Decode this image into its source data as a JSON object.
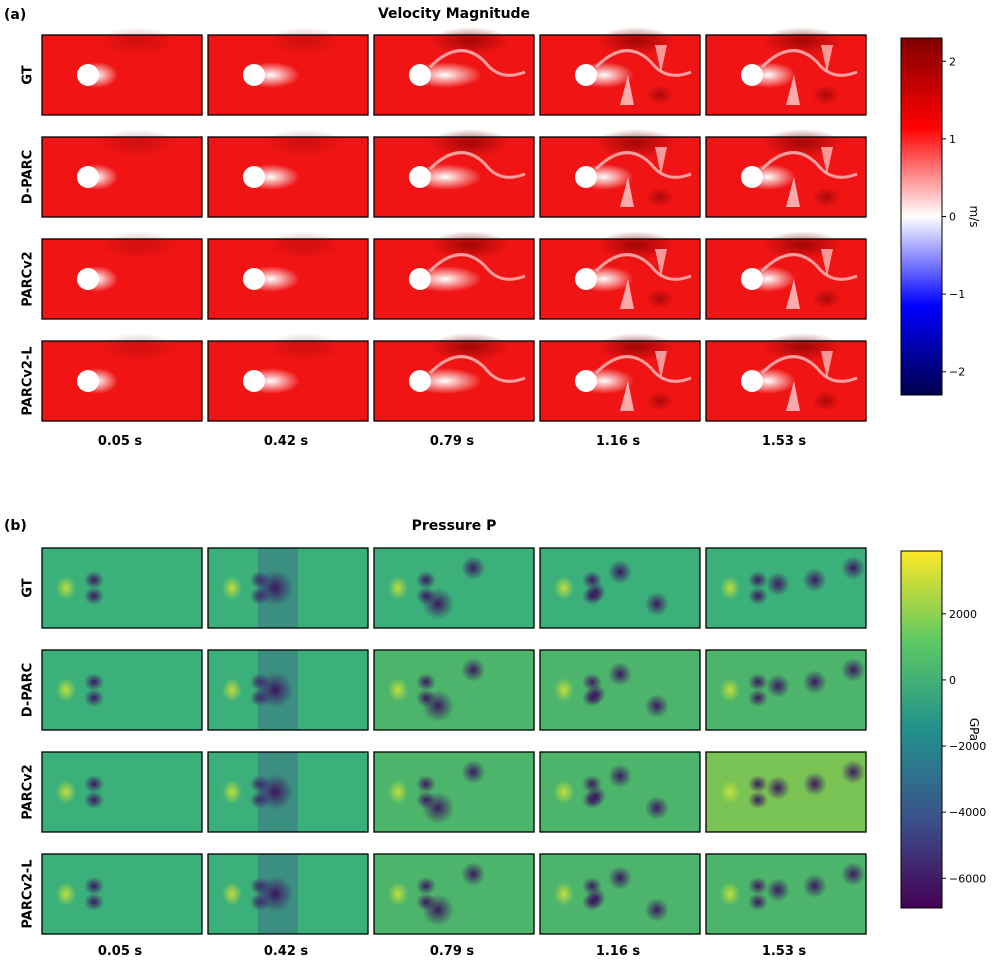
{
  "figure": {
    "time_labels": [
      "0.05 s",
      "0.42 s",
      "0.79 s",
      "1.16 s",
      "1.53 s"
    ],
    "row_labels": [
      "GT",
      "D-PARC",
      "PARCv2",
      "PARCv2-L"
    ]
  },
  "chart_data": [
    {
      "type": "heatmap",
      "panel_tag": "(a)",
      "title": "Velocity Magnitude",
      "rows": [
        "GT",
        "D-PARC",
        "PARCv2",
        "PARCv2-L"
      ],
      "columns": [
        "0.05 s",
        "0.42 s",
        "0.79 s",
        "1.16 s",
        "1.53 s"
      ],
      "colorbar": {
        "label": "m/s",
        "colormap": "seismic",
        "range": [
          -2.3,
          2.3
        ],
        "ticks": [
          -2,
          -1,
          0,
          1,
          2
        ],
        "tick_labels": [
          "−2",
          "−1",
          "0",
          "1",
          "2"
        ],
        "colors": [
          "#00004c",
          "#0000ff",
          "#ffffff",
          "#ff0000",
          "#800000"
        ]
      },
      "field": {
        "background_value": 1.1,
        "obstacle_value": 0.0,
        "notes": "flow past a circular obstacle; wake streaks and vortex shedding downstream"
      }
    },
    {
      "type": "heatmap",
      "panel_tag": "(b)",
      "title": "Pressure P",
      "rows": [
        "GT",
        "D-PARC",
        "PARCv2",
        "PARCv2-L"
      ],
      "columns": [
        "0.05 s",
        "0.42 s",
        "0.79 s",
        "1.16 s",
        "1.53 s"
      ],
      "colorbar": {
        "label": "GPa",
        "colormap": "viridis",
        "range": [
          -6900,
          3900
        ],
        "ticks": [
          -6000,
          -4000,
          -2000,
          0,
          2000
        ],
        "tick_labels": [
          "−6000",
          "−4000",
          "−2000",
          "0",
          "2000"
        ],
        "colors": [
          "#440154",
          "#3b528b",
          "#21918c",
          "#5ec962",
          "#fde725"
        ]
      },
      "field": {
        "background_value": 0,
        "notes": "low-pressure vortex cores shed behind the obstacle"
      }
    }
  ]
}
